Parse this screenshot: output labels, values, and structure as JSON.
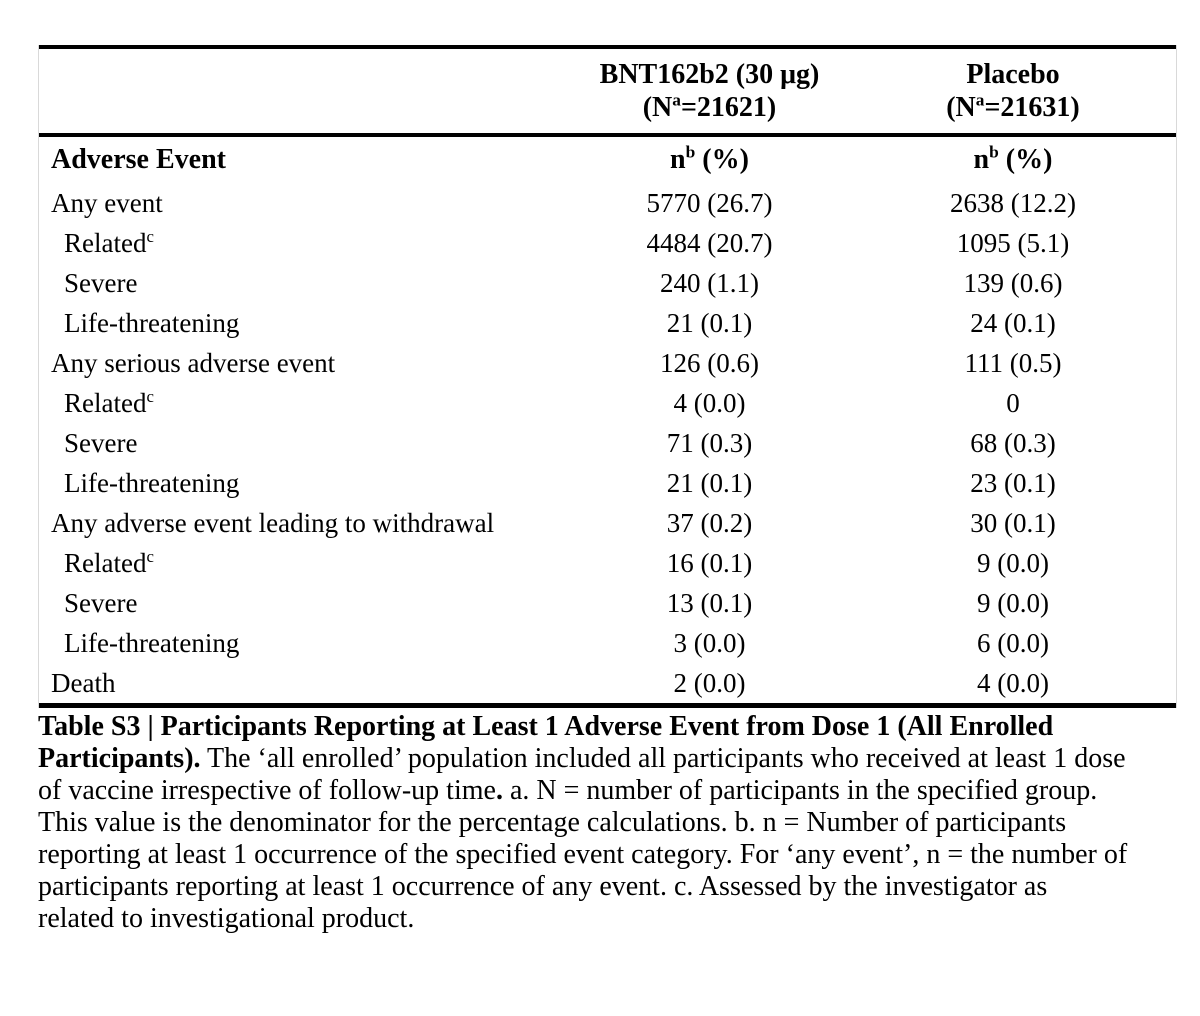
{
  "table": {
    "row_header": "Adverse Event",
    "columns": [
      {
        "title": "BNT162b2 (30 μg)",
        "n_prefix": "(N",
        "n_sup": "a",
        "n_suffix": "=21621)",
        "unit_n": "n",
        "unit_sup": "b",
        "unit_rest": " (%)"
      },
      {
        "title": "Placebo",
        "n_prefix": "(N",
        "n_sup": "a",
        "n_suffix": "=21631)",
        "unit_n": "n",
        "unit_sup": "b",
        "unit_rest": " (%)"
      }
    ],
    "rows": [
      {
        "label": "Any event",
        "indent": false,
        "sup": null,
        "bnt": "5770 (26.7)",
        "placebo": "2638 (12.2)"
      },
      {
        "label": "Related",
        "indent": true,
        "sup": "c",
        "bnt": "4484 (20.7)",
        "placebo": "1095 (5.1)"
      },
      {
        "label": "Severe",
        "indent": true,
        "sup": null,
        "bnt": "240 (1.1)",
        "placebo": "139 (0.6)"
      },
      {
        "label": "Life-threatening",
        "indent": true,
        "sup": null,
        "bnt": "21 (0.1)",
        "placebo": "24 (0.1)"
      },
      {
        "label": "Any serious adverse event",
        "indent": false,
        "sup": null,
        "bnt": "126 (0.6)",
        "placebo": "111 (0.5)"
      },
      {
        "label": "Related",
        "indent": true,
        "sup": "c",
        "bnt": "4 (0.0)",
        "placebo": "0"
      },
      {
        "label": "Severe",
        "indent": true,
        "sup": null,
        "bnt": "71 (0.3)",
        "placebo": "68 (0.3)"
      },
      {
        "label": "Life-threatening",
        "indent": true,
        "sup": null,
        "bnt": "21 (0.1)",
        "placebo": "23 (0.1)"
      },
      {
        "label": "Any adverse event leading to withdrawal",
        "indent": false,
        "sup": null,
        "bnt": "37 (0.2)",
        "placebo": "30 (0.1)"
      },
      {
        "label": "Related",
        "indent": true,
        "sup": "c",
        "bnt": "16 (0.1)",
        "placebo": "9 (0.0)"
      },
      {
        "label": "Severe",
        "indent": true,
        "sup": null,
        "bnt": "13 (0.1)",
        "placebo": "9 (0.0)"
      },
      {
        "label": "Life-threatening",
        "indent": true,
        "sup": null,
        "bnt": "3 (0.0)",
        "placebo": "6 (0.0)"
      },
      {
        "label": "Death",
        "indent": false,
        "sup": null,
        "bnt": "2 (0.0)",
        "placebo": "4 (0.0)"
      }
    ]
  },
  "caption": {
    "lines": [
      [
        {
          "t": "Table S3 | Participants Reporting at Least 1 Adverse Event from Dose 1 (All Enrolled",
          "b": true
        }
      ],
      [
        {
          "t": "Participants).",
          "b": true
        },
        {
          "t": " The ‘all enrolled’ population included all participants who received at least 1 dose",
          "b": false
        }
      ],
      [
        {
          "t": "of vaccine irrespective of follow-up time",
          "b": false
        },
        {
          "t": ".",
          "b": true
        },
        {
          "t": " a. N = number of participants in the specified group.",
          "b": false
        }
      ],
      [
        {
          "t": "This value is the denominator for the percentage calculations. b. n = Number of participants",
          "b": false
        }
      ],
      [
        {
          "t": "reporting at least 1 occurrence of the specified event category. For ‘any event’, n = the number of",
          "b": false
        }
      ],
      [
        {
          "t": "participants reporting at least 1 occurrence of any event. c. Assessed by the investigator as",
          "b": false
        }
      ],
      [
        {
          "t": "related to investigational product.",
          "b": false
        }
      ]
    ]
  }
}
